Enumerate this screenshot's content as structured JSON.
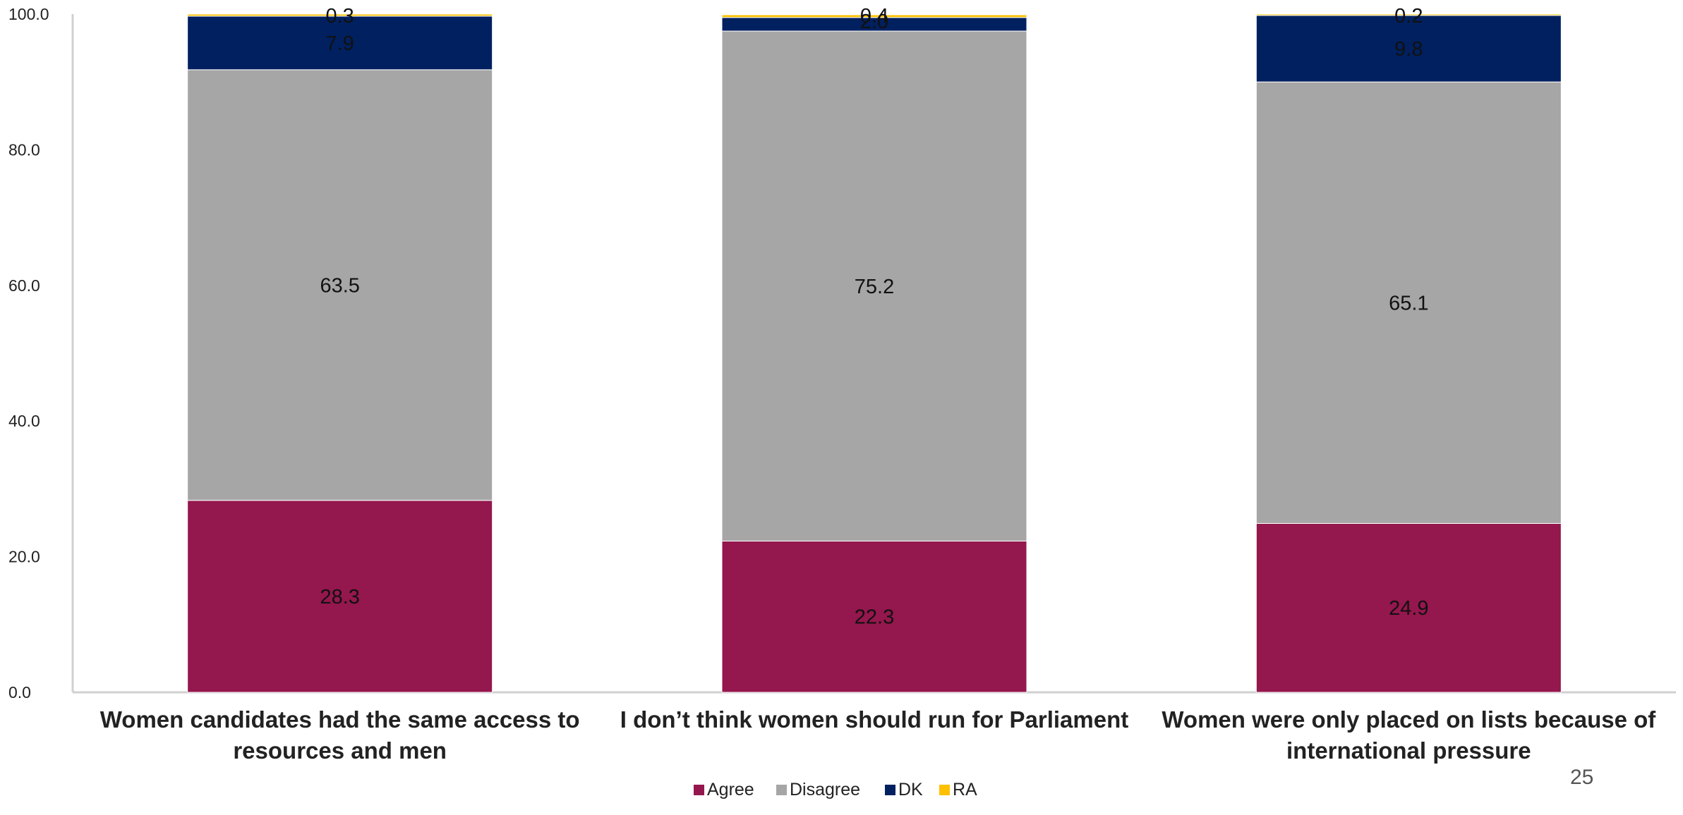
{
  "chart_data": {
    "type": "bar",
    "stacked": true,
    "categories": [
      [
        "Women candidates had the same access to",
        "resources and men"
      ],
      [
        "I don’t think women should run for Parliament"
      ],
      [
        "Women were only placed on lists because of",
        "international pressure"
      ]
    ],
    "series": [
      {
        "name": "Agree",
        "color": "#94174D",
        "values": [
          28.3,
          22.3,
          24.9
        ]
      },
      {
        "name": "Disagree",
        "color": "#A6A6A6",
        "values": [
          63.5,
          75.2,
          65.1
        ]
      },
      {
        "name": "DK",
        "color": "#002060",
        "values": [
          7.9,
          2.0,
          9.8
        ]
      },
      {
        "name": "RA",
        "color": "#FFC000",
        "values": [
          0.3,
          0.4,
          0.2
        ]
      }
    ],
    "data_labels": [
      [
        "28.3",
        "22.3",
        "24.9"
      ],
      [
        "63.5",
        "75.2",
        "65.1"
      ],
      [
        "7.9",
        "2.0",
        "9.8"
      ],
      [
        "0.3",
        "0.4",
        "0.2"
      ]
    ],
    "yticks": [
      "0.0",
      "20.0",
      "40.0",
      "60.0",
      "80.0",
      "100.0"
    ],
    "ylim": [
      0,
      100
    ],
    "grid": false,
    "legend_position": "bottom"
  },
  "page_number": "25"
}
